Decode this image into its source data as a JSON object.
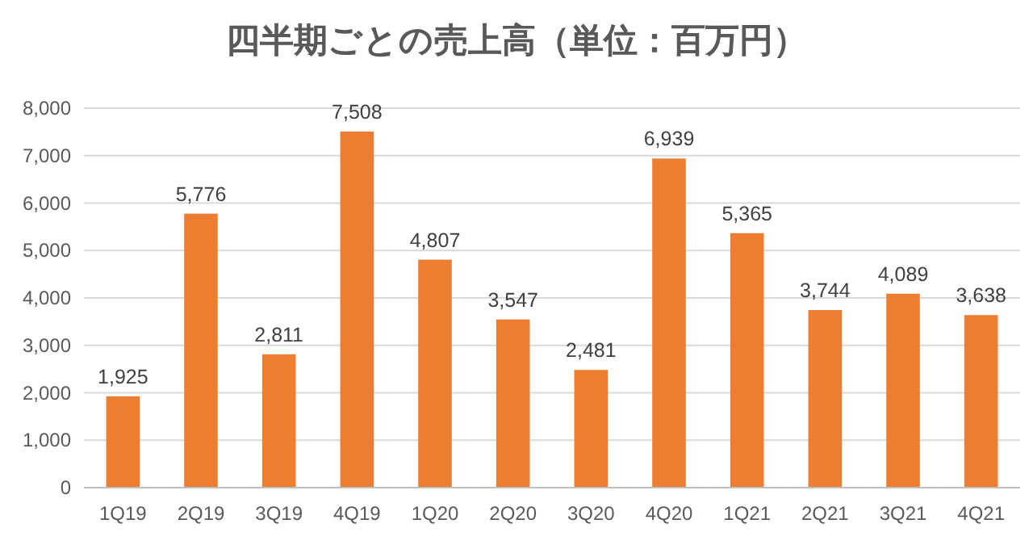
{
  "chart_data": {
    "type": "bar",
    "title": "四半期ごとの売上高（単位：百万円）",
    "categories": [
      "1Q19",
      "2Q19",
      "3Q19",
      "4Q19",
      "1Q20",
      "2Q20",
      "3Q20",
      "4Q20",
      "1Q21",
      "2Q21",
      "3Q21",
      "4Q21"
    ],
    "values": [
      1925,
      5776,
      2811,
      7508,
      4807,
      3547,
      2481,
      6939,
      5365,
      3744,
      4089,
      3638
    ],
    "color": "#ed7d31",
    "ylim": [
      0,
      8000
    ],
    "yticks": [
      {
        "value": 0,
        "label": "0"
      },
      {
        "value": 1000,
        "label": "1,000"
      },
      {
        "value": 2000,
        "label": "2,000"
      },
      {
        "value": 3000,
        "label": "3,000"
      },
      {
        "value": 4000,
        "label": "4,000"
      },
      {
        "value": 5000,
        "label": "5,000"
      },
      {
        "value": 6000,
        "label": "6,000"
      },
      {
        "value": 7000,
        "label": "7,000"
      },
      {
        "value": 8000,
        "label": "8,000"
      }
    ],
    "value_labels": [
      "1,925",
      "5,776",
      "2,811",
      "7,508",
      "4,807",
      "3,547",
      "2,481",
      "6,939",
      "5,365",
      "3,744",
      "4,089",
      "3,638"
    ],
    "grid": "y"
  }
}
